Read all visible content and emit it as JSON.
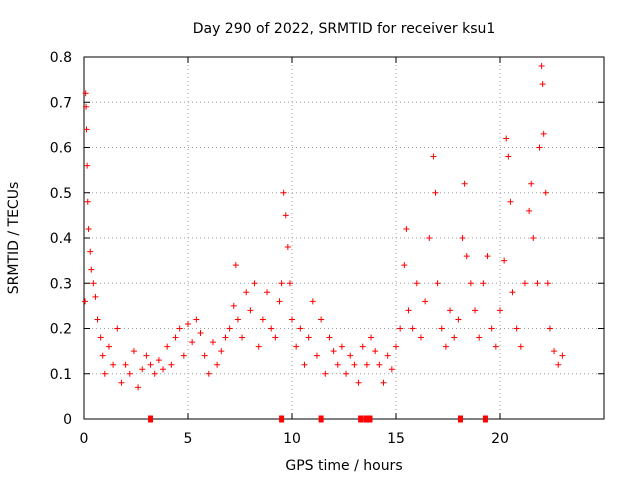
{
  "chart_data": {
    "type": "scatter",
    "title": "Day 290 of 2022, SRMTID for receiver ksu1",
    "xlabel": "GPS time / hours",
    "ylabel": "SRMTID / TECUs",
    "xlim": [
      0,
      25
    ],
    "ylim": [
      0,
      0.8
    ],
    "grid": true,
    "marker": "+",
    "series_color": "#ff0000",
    "x_ticks": [
      0,
      5,
      10,
      15,
      20
    ],
    "x_tick_labels": [
      "0",
      "5",
      "10",
      "15",
      "20"
    ],
    "y_ticks": [
      0,
      0.1,
      0.2,
      0.3,
      0.4,
      0.5,
      0.6,
      0.7,
      0.8
    ],
    "y_tick_labels": [
      "0",
      "0.1",
      "0.2",
      "0.3",
      "0.4",
      "0.5",
      "0.6",
      "0.7",
      "0.8"
    ],
    "series": [
      {
        "name": "SRMTID",
        "points": [
          [
            0.05,
            0.26
          ],
          [
            0.08,
            0.72
          ],
          [
            0.1,
            0.69
          ],
          [
            0.12,
            0.64
          ],
          [
            0.15,
            0.56
          ],
          [
            0.18,
            0.48
          ],
          [
            0.22,
            0.42
          ],
          [
            0.3,
            0.37
          ],
          [
            0.35,
            0.33
          ],
          [
            0.45,
            0.3
          ],
          [
            0.55,
            0.27
          ],
          [
            0.65,
            0.22
          ],
          [
            0.8,
            0.18
          ],
          [
            0.9,
            0.14
          ],
          [
            1.0,
            0.1
          ],
          [
            1.2,
            0.16
          ],
          [
            1.4,
            0.12
          ],
          [
            1.6,
            0.2
          ],
          [
            1.8,
            0.08
          ],
          [
            2.0,
            0.12
          ],
          [
            2.2,
            0.1
          ],
          [
            2.4,
            0.15
          ],
          [
            2.6,
            0.07
          ],
          [
            2.8,
            0.11
          ],
          [
            3.0,
            0.14
          ],
          [
            3.2,
            0.12
          ],
          [
            3.4,
            0.1
          ],
          [
            3.6,
            0.13
          ],
          [
            3.8,
            0.11
          ],
          [
            4.0,
            0.16
          ],
          [
            4.2,
            0.12
          ],
          [
            4.4,
            0.18
          ],
          [
            4.6,
            0.2
          ],
          [
            4.8,
            0.14
          ],
          [
            5.0,
            0.21
          ],
          [
            5.2,
            0.17
          ],
          [
            5.4,
            0.22
          ],
          [
            5.6,
            0.19
          ],
          [
            5.8,
            0.14
          ],
          [
            6.0,
            0.1
          ],
          [
            6.2,
            0.17
          ],
          [
            6.4,
            0.12
          ],
          [
            6.6,
            0.15
          ],
          [
            6.8,
            0.18
          ],
          [
            7.0,
            0.2
          ],
          [
            7.2,
            0.25
          ],
          [
            7.3,
            0.34
          ],
          [
            7.4,
            0.22
          ],
          [
            7.6,
            0.18
          ],
          [
            7.8,
            0.28
          ],
          [
            8.0,
            0.24
          ],
          [
            8.2,
            0.3
          ],
          [
            8.4,
            0.16
          ],
          [
            8.6,
            0.22
          ],
          [
            8.8,
            0.28
          ],
          [
            9.0,
            0.2
          ],
          [
            9.2,
            0.18
          ],
          [
            9.4,
            0.26
          ],
          [
            9.5,
            0.3
          ],
          [
            9.6,
            0.5
          ],
          [
            9.7,
            0.45
          ],
          [
            9.8,
            0.38
          ],
          [
            9.9,
            0.3
          ],
          [
            10.0,
            0.22
          ],
          [
            10.2,
            0.16
          ],
          [
            10.4,
            0.2
          ],
          [
            10.6,
            0.12
          ],
          [
            10.8,
            0.18
          ],
          [
            11.0,
            0.26
          ],
          [
            11.2,
            0.14
          ],
          [
            11.4,
            0.22
          ],
          [
            11.6,
            0.1
          ],
          [
            11.8,
            0.18
          ],
          [
            12.0,
            0.15
          ],
          [
            12.2,
            0.12
          ],
          [
            12.4,
            0.16
          ],
          [
            12.6,
            0.1
          ],
          [
            12.8,
            0.14
          ],
          [
            13.0,
            0.12
          ],
          [
            13.2,
            0.08
          ],
          [
            13.4,
            0.16
          ],
          [
            13.6,
            0.12
          ],
          [
            13.8,
            0.18
          ],
          [
            14.0,
            0.15
          ],
          [
            14.2,
            0.12
          ],
          [
            14.4,
            0.08
          ],
          [
            14.6,
            0.14
          ],
          [
            14.8,
            0.11
          ],
          [
            15.0,
            0.16
          ],
          [
            15.2,
            0.2
          ],
          [
            15.4,
            0.34
          ],
          [
            15.5,
            0.42
          ],
          [
            15.6,
            0.24
          ],
          [
            15.8,
            0.2
          ],
          [
            16.0,
            0.3
          ],
          [
            16.2,
            0.18
          ],
          [
            16.4,
            0.26
          ],
          [
            16.6,
            0.4
          ],
          [
            16.8,
            0.58
          ],
          [
            16.9,
            0.5
          ],
          [
            17.0,
            0.3
          ],
          [
            17.2,
            0.2
          ],
          [
            17.4,
            0.16
          ],
          [
            17.6,
            0.24
          ],
          [
            17.8,
            0.18
          ],
          [
            18.0,
            0.22
          ],
          [
            18.2,
            0.4
          ],
          [
            18.3,
            0.52
          ],
          [
            18.4,
            0.36
          ],
          [
            18.6,
            0.3
          ],
          [
            18.8,
            0.24
          ],
          [
            19.0,
            0.18
          ],
          [
            19.2,
            0.3
          ],
          [
            19.4,
            0.36
          ],
          [
            19.6,
            0.2
          ],
          [
            19.8,
            0.16
          ],
          [
            20.0,
            0.24
          ],
          [
            20.2,
            0.35
          ],
          [
            20.3,
            0.62
          ],
          [
            20.4,
            0.58
          ],
          [
            20.5,
            0.48
          ],
          [
            20.6,
            0.28
          ],
          [
            20.8,
            0.2
          ],
          [
            21.0,
            0.16
          ],
          [
            21.2,
            0.3
          ],
          [
            21.4,
            0.46
          ],
          [
            21.5,
            0.52
          ],
          [
            21.6,
            0.4
          ],
          [
            21.8,
            0.3
          ],
          [
            21.9,
            0.6
          ],
          [
            22.0,
            0.78
          ],
          [
            22.05,
            0.74
          ],
          [
            22.1,
            0.63
          ],
          [
            22.2,
            0.5
          ],
          [
            22.3,
            0.3
          ],
          [
            22.4,
            0.2
          ],
          [
            22.6,
            0.15
          ],
          [
            22.8,
            0.12
          ],
          [
            23.0,
            0.14
          ]
        ]
      },
      {
        "name": "gap markers",
        "points": [
          [
            3.2,
            0
          ],
          [
            9.5,
            0
          ],
          [
            11.4,
            0
          ],
          [
            13.3,
            0
          ],
          [
            13.55,
            0
          ],
          [
            13.75,
            0
          ],
          [
            18.1,
            0
          ],
          [
            19.3,
            0
          ]
        ]
      }
    ]
  }
}
